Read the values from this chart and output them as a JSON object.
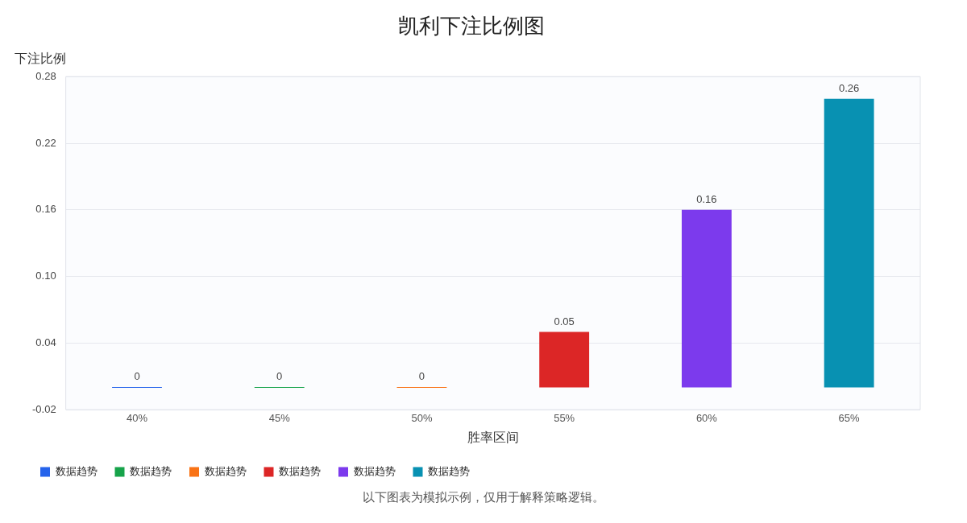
{
  "chart_data": {
    "type": "bar",
    "title": "凯利下注比例图",
    "xlabel": "胜率区间",
    "ylabel": "下注比例",
    "categories": [
      "40%",
      "45%",
      "50%",
      "55%",
      "60%",
      "65%"
    ],
    "series": [
      {
        "name": "数据趋势",
        "color": "#2563eb",
        "values": [
          0,
          null,
          null,
          null,
          null,
          null
        ]
      },
      {
        "name": "数据趋势",
        "color": "#16a34a",
        "values": [
          null,
          0,
          null,
          null,
          null,
          null
        ]
      },
      {
        "name": "数据趋势",
        "color": "#f97316",
        "values": [
          null,
          null,
          0,
          null,
          null,
          null
        ]
      },
      {
        "name": "数据趋势",
        "color": "#dc2626",
        "values": [
          null,
          null,
          null,
          0.05,
          null,
          null
        ]
      },
      {
        "name": "数据趋势",
        "color": "#7c3aed",
        "values": [
          null,
          null,
          null,
          null,
          0.16,
          null
        ]
      },
      {
        "name": "数据趋势",
        "color": "#0891b2",
        "values": [
          null,
          null,
          null,
          null,
          null,
          0.26
        ]
      }
    ],
    "ylim": [
      -0.02,
      0.28
    ],
    "yticks": [
      -0.02,
      0.04,
      {
        "value": 0.1,
        "label": "0.10"
      },
      0.16,
      0.22,
      0.28
    ],
    "grid": "y",
    "legend": "bottom left",
    "data_labels": true,
    "annotations": [
      "以下图表为模拟示例，仅用于解释策略逻辑。"
    ]
  }
}
